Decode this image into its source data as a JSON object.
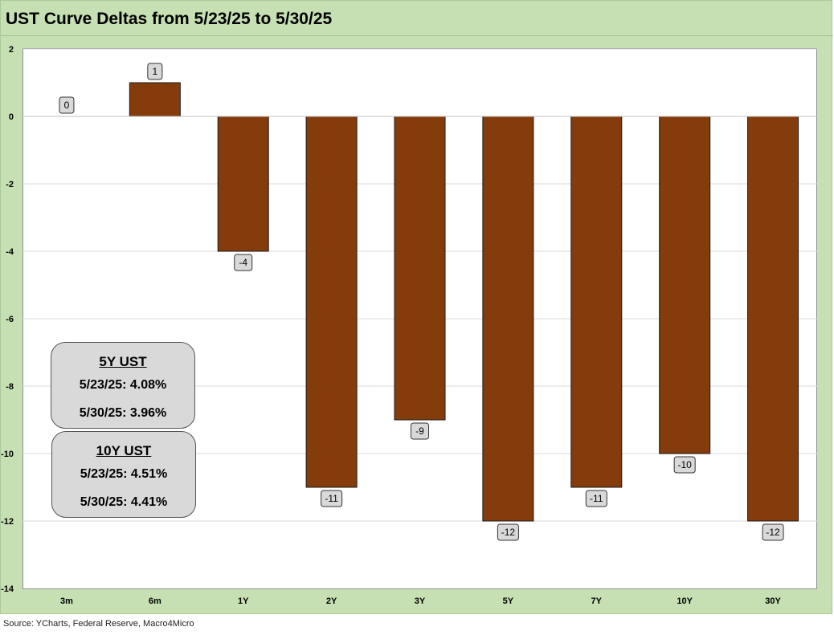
{
  "page": {
    "title": "UST Curve Deltas from 5/23/25 to 5/30/25",
    "source": "Source: YCharts, Federal Reserve, Macro4Micro"
  },
  "chart_data": {
    "type": "bar",
    "title": "UST Curve Deltas from 5/23/25 to 5/30/25",
    "xlabel": "",
    "ylabel": "",
    "categories": [
      "3m",
      "6m",
      "1Y",
      "2Y",
      "3Y",
      "5Y",
      "7Y",
      "10Y",
      "30Y"
    ],
    "values": [
      0,
      1,
      -4,
      -11,
      -9,
      -12,
      -11,
      -10,
      -12
    ],
    "data_labels": [
      "0",
      "1",
      "-4",
      "-11",
      "-9",
      "-12",
      "-11",
      "-10",
      "-12"
    ],
    "ylim": [
      -14,
      2
    ],
    "yticks": [
      2,
      0,
      -2,
      -4,
      -6,
      -8,
      -10,
      -12,
      -14
    ],
    "grid": true,
    "bar_color": "#843c0c",
    "legend": "none"
  },
  "annotations": {
    "box_5y": {
      "header": "5Y UST",
      "row1": "5/23/25:  4.08%",
      "row2": "5/30/25:  3.96%"
    },
    "box_10y": {
      "header": "10Y UST",
      "row1": "5/23/25:  4.51%",
      "row2": "5/30/25:  4.41%"
    }
  },
  "colors": {
    "frame_bg": "#c6e0b4",
    "bar": "#843c0c",
    "label_box": "#d9d9d9"
  }
}
